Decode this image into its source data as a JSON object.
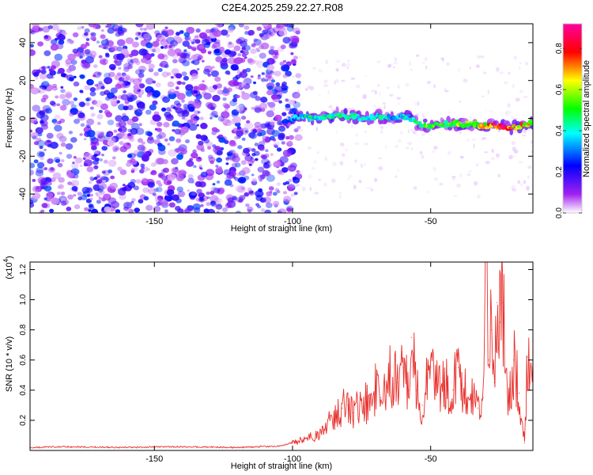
{
  "figure": {
    "title": "C2E4.2025.259.22.27.R08"
  },
  "chart_data": [
    {
      "type": "heatmap",
      "title": "C2E4.2025.259.22.27.R08",
      "xlabel": "Height of straight line (km)",
      "ylabel": "Frequency (Hz)",
      "xlim": [
        -195,
        -13
      ],
      "ylim": [
        -50,
        50
      ],
      "xticks": [
        -150,
        -100,
        -50
      ],
      "xtick_labels": [
        "-150",
        "-100",
        "-50"
      ],
      "yticks": [
        -40,
        -20,
        0,
        20,
        40
      ],
      "ytick_labels": [
        "-40",
        "-20",
        "0",
        "20",
        "40"
      ],
      "noise_region_x": [
        -195,
        -100
      ],
      "ridge": {
        "x": [
          -103,
          -98,
          -93,
          -88,
          -83,
          -78,
          -73,
          -68,
          -63,
          -58,
          -55,
          -50,
          -45,
          -40,
          -35,
          -30,
          -25,
          -20,
          -15,
          -13
        ],
        "frequency": [
          -2,
          1,
          0,
          1,
          2,
          1,
          0,
          1,
          0,
          1,
          -3,
          -4,
          -3,
          -3,
          -3,
          -4,
          -4,
          -5,
          -3,
          -3
        ],
        "amplitude": [
          0.3,
          0.4,
          0.45,
          0.45,
          0.5,
          0.45,
          0.4,
          0.45,
          0.4,
          0.45,
          0.5,
          0.6,
          0.55,
          0.6,
          0.6,
          0.7,
          0.9,
          0.75,
          0.7,
          0.65
        ]
      },
      "colorbar": {
        "label": "Normalized spectral amplitude",
        "range": [
          0,
          0.92
        ],
        "ticks": [
          0.0,
          0.2,
          0.4,
          0.6,
          0.8
        ],
        "tick_labels": [
          "0.0",
          "0.2",
          "0.4",
          "0.6",
          "0.8"
        ],
        "colors": [
          "#ffffff",
          "#a020f0",
          "#0000ff",
          "#00ffff",
          "#00ff00",
          "#ffff00",
          "#ff0000",
          "#ff00a0"
        ]
      }
    },
    {
      "type": "line",
      "xlabel": "Height of straight line (km)",
      "ylabel": "SNR (10 * v/v)",
      "y_multiplier": "(x10",
      "y_multiplier_exp": "4",
      "y_multiplier_close": ")",
      "xlim": [
        -195,
        -13
      ],
      "ylim": [
        0,
        1.25
      ],
      "xticks": [
        -150,
        -100,
        -50
      ],
      "xtick_labels": [
        "-150",
        "-100",
        "-50"
      ],
      "yticks": [
        0.2,
        0.4,
        0.6,
        0.8,
        1.0,
        1.2
      ],
      "ytick_labels": [
        "0.2",
        "0.4",
        "0.6",
        "0.8",
        "1.0",
        "1.2"
      ],
      "color": "#e8302c",
      "series": [
        {
          "name": "SNR",
          "x": [
            -195,
            -180,
            -160,
            -140,
            -120,
            -105,
            -100,
            -95,
            -90,
            -88,
            -85,
            -82,
            -80,
            -78,
            -75,
            -72,
            -70,
            -68,
            -65,
            -62,
            -60,
            -58,
            -57,
            -55,
            -53,
            -50,
            -48,
            -45,
            -42,
            -40,
            -38,
            -35,
            -33,
            -31,
            -30,
            -29,
            -28,
            -27,
            -26,
            -25,
            -24,
            -22,
            -20,
            -18,
            -17,
            -16,
            -15,
            -14,
            -13
          ],
          "values": [
            0.02,
            0.025,
            0.02,
            0.025,
            0.02,
            0.03,
            0.05,
            0.08,
            0.12,
            0.17,
            0.2,
            0.28,
            0.3,
            0.25,
            0.33,
            0.3,
            0.4,
            0.35,
            0.5,
            0.45,
            0.55,
            0.4,
            0.75,
            0.4,
            0.3,
            0.55,
            0.45,
            0.45,
            0.4,
            0.55,
            0.4,
            0.35,
            0.28,
            0.35,
            1.25,
            0.6,
            0.8,
            0.45,
            0.98,
            0.85,
            0.98,
            0.3,
            0.6,
            0.38,
            0.2,
            0.05,
            0.62,
            0.45,
            0.6
          ]
        }
      ]
    }
  ]
}
